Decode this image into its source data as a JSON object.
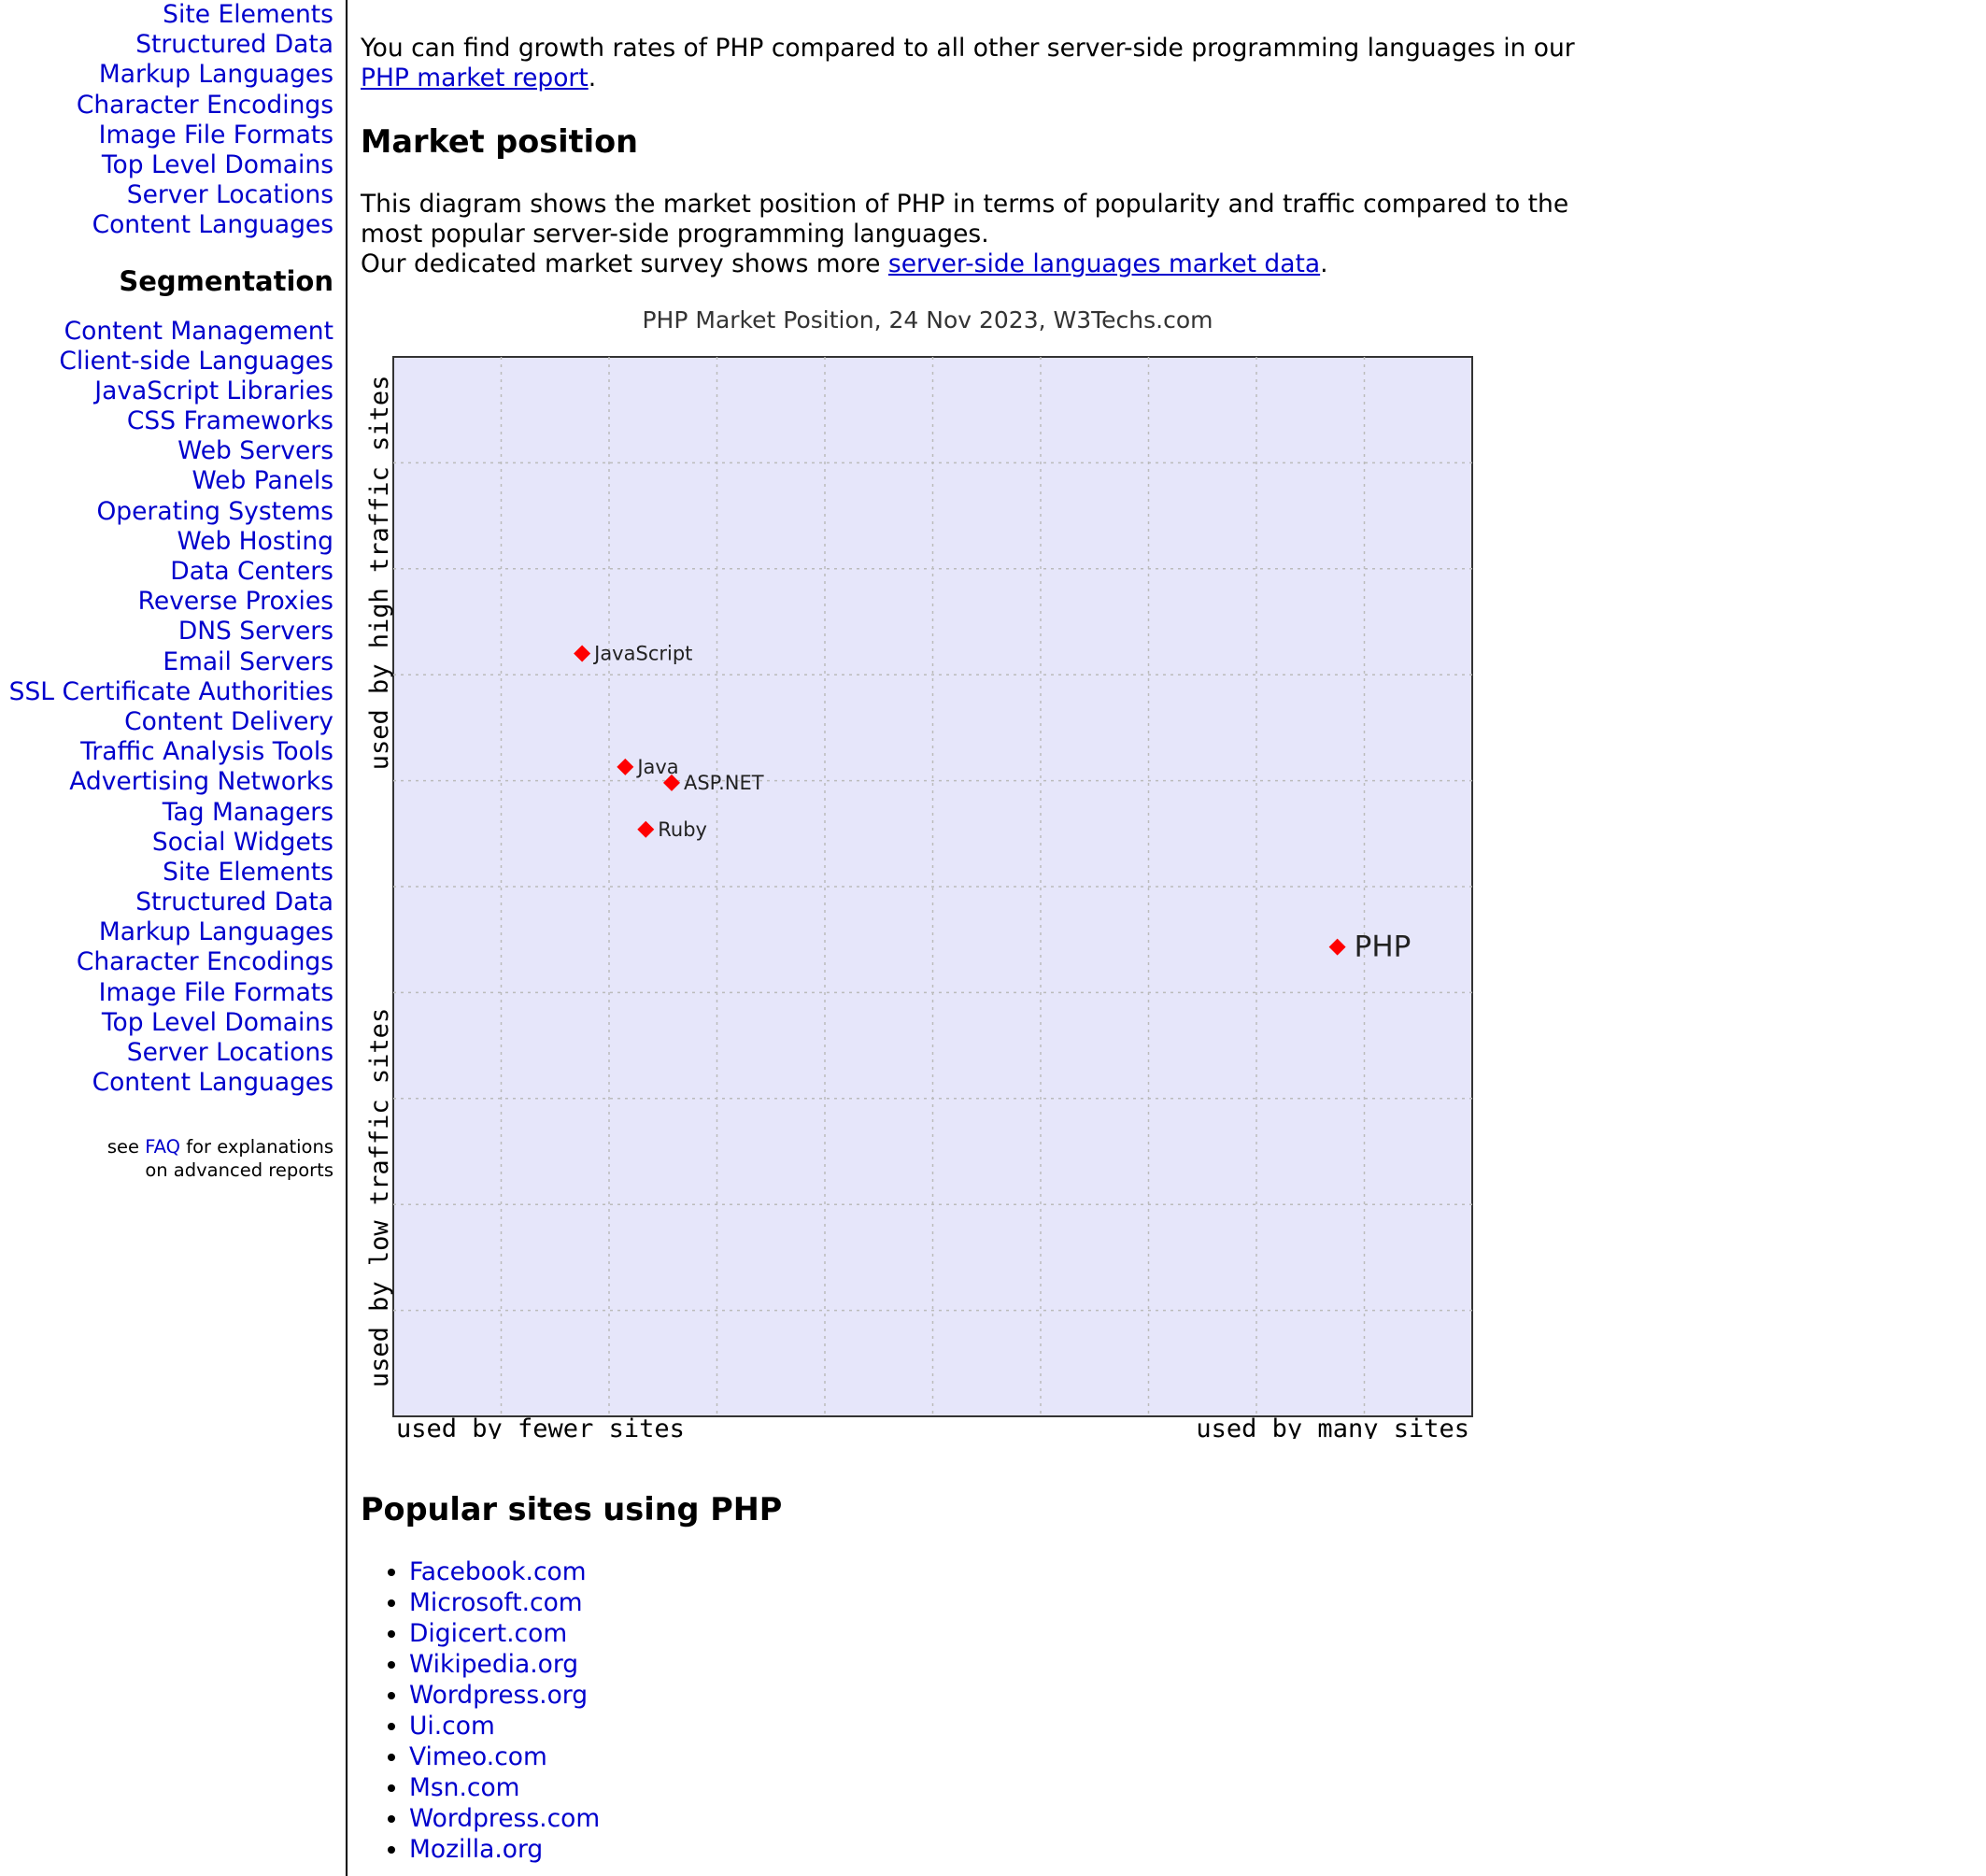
{
  "sidebar": {
    "top_links": [
      "Site Elements",
      "Structured Data",
      "Markup Languages",
      "Character Encodings",
      "Image File Formats",
      "Top Level Domains",
      "Server Locations",
      "Content Languages"
    ],
    "segmentation_heading": "Segmentation",
    "segmentation_links": [
      "Content Management",
      "Client-side Languages",
      "JavaScript Libraries",
      "CSS Frameworks",
      "Web Servers",
      "Web Panels",
      "Operating Systems",
      "Web Hosting",
      "Data Centers",
      "Reverse Proxies",
      "DNS Servers",
      "Email Servers",
      "SSL Certificate Authorities",
      "Content Delivery",
      "Traffic Analysis Tools",
      "Advertising Networks",
      "Tag Managers",
      "Social Widgets",
      "Site Elements",
      "Structured Data",
      "Markup Languages",
      "Character Encodings",
      "Image File Formats",
      "Top Level Domains",
      "Server Locations",
      "Content Languages"
    ],
    "note_before": "see",
    "note_link": "FAQ",
    "note_after": "for explanations",
    "note_line2": "on advanced reports"
  },
  "intro": {
    "text_before": "You can find growth rates of PHP compared to all other server-side programming languages in our",
    "link": "PHP market report",
    "text_after": "."
  },
  "market": {
    "heading": "Market position",
    "line1": "This diagram shows the market position of PHP in terms of popularity and traffic compared to the most popular server-side programming languages.",
    "line2_before": "Our dedicated market survey shows more",
    "line2_link": "server-side languages market data",
    "line2_after": "."
  },
  "chart_data": {
    "type": "scatter",
    "title": "PHP Market Position, 24 Nov 2023, W3Techs.com",
    "xlabel_left": "used by fewer sites",
    "xlabel_right": "used by many sites",
    "ylabel_top": "used by high traffic sites",
    "ylabel_bottom": "used by low traffic sites",
    "xlim": [
      0,
      10
    ],
    "ylim": [
      0,
      10
    ],
    "grid": true,
    "plot_background": "#e6e6fa",
    "marker_color": "#ff0000",
    "points": [
      {
        "label": "JavaScript",
        "x": 1.75,
        "y": 7.2
      },
      {
        "label": "Java",
        "x": 2.15,
        "y": 6.13
      },
      {
        "label": "ASP.NET",
        "x": 2.58,
        "y": 5.98
      },
      {
        "label": "Ruby",
        "x": 2.34,
        "y": 5.54
      },
      {
        "label": "PHP",
        "x": 8.75,
        "y": 4.43,
        "highlight": true
      }
    ]
  },
  "popular": {
    "heading": "Popular sites using PHP",
    "sites": [
      "Facebook.com",
      "Microsoft.com",
      "Digicert.com",
      "Wikipedia.org",
      "Wordpress.org",
      "Ui.com",
      "Vimeo.com",
      "Msn.com",
      "Wordpress.com",
      "Mozilla.org"
    ]
  },
  "colors": {
    "link": "#0000cc",
    "text": "#000000"
  }
}
